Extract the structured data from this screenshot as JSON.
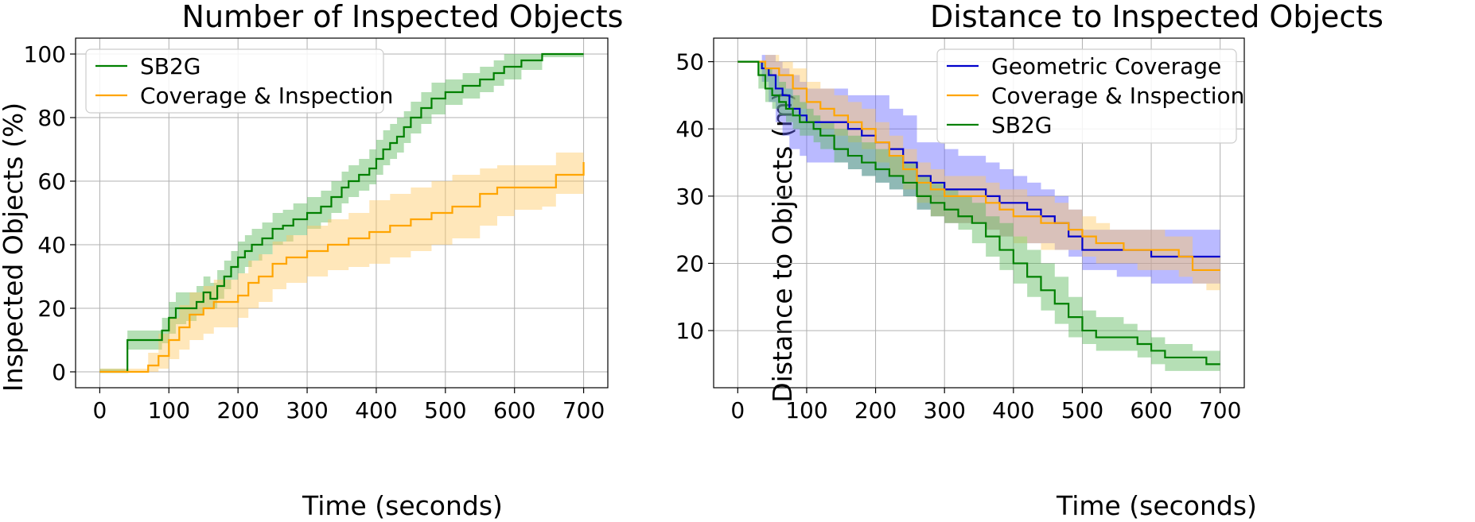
{
  "chart_data": [
    {
      "type": "line",
      "title": "Number of Inspected Objects",
      "xlabel": "Time (seconds)",
      "ylabel": "Inspected Objects (%)",
      "xlim": [
        -35,
        735
      ],
      "ylim": [
        -5,
        105
      ],
      "xticks": [
        0,
        100,
        200,
        300,
        400,
        500,
        600,
        700
      ],
      "yticks": [
        0,
        20,
        40,
        60,
        80,
        100
      ],
      "legend_position": "upper-left",
      "series": [
        {
          "name": "SB2G",
          "color": "#008000",
          "fill": "#5cb85c",
          "x": [
            0,
            35,
            40,
            60,
            75,
            90,
            100,
            110,
            125,
            140,
            150,
            160,
            170,
            180,
            190,
            200,
            210,
            220,
            235,
            250,
            265,
            280,
            300,
            320,
            335,
            350,
            360,
            375,
            390,
            400,
            410,
            420,
            430,
            440,
            450,
            465,
            480,
            500,
            525,
            550,
            570,
            585,
            610,
            640,
            700
          ],
          "y": [
            0,
            0,
            10,
            10,
            10,
            13,
            17,
            20,
            20,
            22,
            25,
            23,
            27,
            30,
            33,
            36,
            38,
            40,
            42,
            45,
            46,
            48,
            50,
            52,
            55,
            58,
            60,
            62,
            64,
            67,
            70,
            72,
            74,
            77,
            80,
            83,
            86,
            88,
            90,
            92,
            94,
            96,
            98,
            100,
            100
          ],
          "lower": [
            0,
            0,
            7,
            7,
            7,
            9,
            12,
            15,
            16,
            18,
            20,
            20,
            23,
            26,
            29,
            31,
            33,
            35,
            37,
            40,
            41,
            43,
            45,
            47,
            50,
            53,
            55,
            57,
            59,
            62,
            65,
            67,
            69,
            72,
            75,
            78,
            81,
            84,
            86,
            88,
            90,
            92,
            95,
            99,
            99
          ],
          "upper": [
            1,
            1,
            13,
            13,
            13,
            17,
            22,
            25,
            25,
            27,
            30,
            28,
            32,
            35,
            38,
            41,
            43,
            45,
            47,
            50,
            51,
            53,
            55,
            57,
            60,
            63,
            65,
            67,
            70,
            73,
            76,
            78,
            80,
            82,
            85,
            88,
            91,
            92,
            94,
            96,
            98,
            100,
            100,
            100,
            100
          ]
        },
        {
          "name": "Coverage & Inspection",
          "color": "#ffa500",
          "fill": "#ffc966",
          "x": [
            0,
            55,
            70,
            85,
            100,
            115,
            130,
            150,
            165,
            180,
            200,
            215,
            230,
            250,
            270,
            300,
            330,
            360,
            390,
            420,
            450,
            480,
            510,
            550,
            575,
            600,
            640,
            660,
            700
          ],
          "y": [
            0,
            0,
            2,
            5,
            10,
            14,
            18,
            20,
            22,
            22,
            24,
            28,
            30,
            34,
            36,
            38,
            40,
            42,
            44,
            46,
            48,
            50,
            52,
            56,
            58,
            58,
            58,
            62,
            66
          ],
          "lower": [
            0,
            0,
            0,
            1,
            4,
            7,
            10,
            12,
            14,
            14,
            17,
            20,
            22,
            26,
            28,
            30,
            32,
            33,
            34,
            36,
            38,
            40,
            42,
            46,
            49,
            51,
            52,
            56,
            61
          ],
          "upper": [
            1,
            1,
            6,
            12,
            17,
            21,
            25,
            27,
            29,
            29,
            31,
            35,
            37,
            41,
            43,
            46,
            48,
            50,
            54,
            56,
            58,
            60,
            62,
            64,
            65,
            65,
            65,
            69,
            71
          ]
        }
      ]
    },
    {
      "type": "line",
      "title": "Distance to Inspected Objects",
      "xlabel": "Time (seconds)",
      "ylabel": "Distance to Objects (m)",
      "xlim": [
        -35,
        735
      ],
      "ylim": [
        1.5,
        53.5
      ],
      "xticks": [
        0,
        100,
        200,
        300,
        400,
        500,
        600,
        700
      ],
      "yticks": [
        10,
        20,
        30,
        40,
        50
      ],
      "legend_position": "upper-right",
      "series": [
        {
          "name": "Geometric Coverage",
          "color": "#0000cc",
          "fill": "#6666ff",
          "x": [
            0,
            20,
            35,
            45,
            55,
            65,
            75,
            90,
            100,
            120,
            140,
            160,
            180,
            200,
            220,
            240,
            260,
            280,
            300,
            320,
            340,
            360,
            380,
            400,
            420,
            440,
            460,
            480,
            500,
            550,
            600,
            650,
            700
          ],
          "y": [
            50,
            50,
            49,
            48,
            46,
            45,
            43,
            42,
            41,
            41,
            41,
            40,
            39,
            38,
            37,
            35,
            33,
            32,
            31,
            31,
            31,
            30,
            29,
            29,
            28,
            27,
            26,
            24,
            22,
            22,
            21,
            21,
            21
          ],
          "lower": [
            50,
            50,
            47,
            44,
            41,
            39,
            37,
            36,
            35,
            35,
            35,
            34,
            33,
            32,
            31,
            30,
            28,
            27,
            26,
            26,
            26,
            25,
            24,
            24,
            23,
            23,
            22,
            21,
            19,
            18,
            17,
            17,
            17
          ],
          "upper": [
            50,
            50,
            51,
            51,
            50,
            49,
            48,
            47,
            46,
            46,
            46,
            45,
            45,
            45,
            43,
            42,
            38,
            38,
            37,
            36,
            36,
            35,
            34,
            33,
            32,
            31,
            30,
            28,
            25,
            25,
            25,
            25,
            25
          ]
        },
        {
          "name": "Coverage & Inspection",
          "color": "#ffa500",
          "fill": "#ffc966",
          "x": [
            0,
            20,
            40,
            60,
            80,
            100,
            120,
            140,
            160,
            180,
            200,
            220,
            240,
            260,
            280,
            300,
            320,
            340,
            360,
            380,
            400,
            420,
            440,
            460,
            480,
            500,
            520,
            540,
            560,
            580,
            600,
            620,
            640,
            660,
            680,
            700
          ],
          "y": [
            50,
            50,
            49,
            48,
            46,
            44,
            43,
            42,
            41,
            40,
            38,
            36,
            34,
            32,
            31,
            30,
            30,
            30,
            29,
            28,
            27,
            27,
            26,
            26,
            25,
            24,
            23,
            23,
            22,
            22,
            22,
            22,
            21,
            19,
            19,
            19
          ],
          "lower": [
            50,
            50,
            48,
            46,
            43,
            41,
            40,
            39,
            38,
            37,
            35,
            33,
            31,
            29,
            27,
            26,
            26,
            26,
            25,
            24,
            23,
            23,
            22,
            22,
            22,
            21,
            20,
            20,
            20,
            19,
            19,
            19,
            18,
            17,
            16,
            16
          ],
          "upper": [
            50,
            50,
            51,
            50,
            49,
            47,
            46,
            45,
            44,
            43,
            41,
            39,
            37,
            35,
            34,
            33,
            33,
            33,
            32,
            31,
            31,
            30,
            30,
            29,
            28,
            27,
            26,
            25,
            25,
            25,
            25,
            24,
            24,
            21,
            21,
            21
          ]
        },
        {
          "name": "SB2G",
          "color": "#008000",
          "fill": "#5cb85c",
          "x": [
            0,
            20,
            30,
            40,
            50,
            60,
            70,
            80,
            90,
            100,
            110,
            120,
            140,
            160,
            180,
            200,
            220,
            240,
            260,
            280,
            300,
            320,
            340,
            360,
            380,
            400,
            420,
            440,
            460,
            480,
            500,
            520,
            540,
            560,
            580,
            600,
            620,
            640,
            660,
            680,
            700
          ],
          "y": [
            50,
            50,
            48,
            46,
            45,
            44,
            43,
            42,
            41,
            41,
            40,
            39,
            37,
            36,
            35,
            34,
            33,
            32,
            30,
            29,
            28,
            27,
            26,
            24,
            22,
            20,
            18,
            16,
            14,
            12,
            10,
            9,
            9,
            9,
            8,
            7,
            6,
            6,
            6,
            5,
            5
          ],
          "lower": [
            50,
            50,
            46,
            44,
            43,
            42,
            41,
            40,
            39,
            39,
            38,
            37,
            35,
            34,
            33,
            32,
            31,
            30,
            28,
            27,
            26,
            25,
            23,
            21,
            19,
            17,
            15,
            13,
            11,
            9,
            8,
            7,
            7,
            7,
            6,
            5,
            4,
            4,
            4,
            4,
            4
          ],
          "upper": [
            50,
            50,
            50,
            49,
            48,
            47,
            46,
            45,
            44,
            43,
            42,
            41,
            40,
            39,
            38,
            37,
            36,
            35,
            33,
            32,
            31,
            30,
            29,
            27,
            26,
            24,
            22,
            20,
            18,
            15,
            13,
            12,
            12,
            11,
            10,
            9,
            8,
            8,
            7,
            7,
            7
          ]
        }
      ]
    }
  ]
}
